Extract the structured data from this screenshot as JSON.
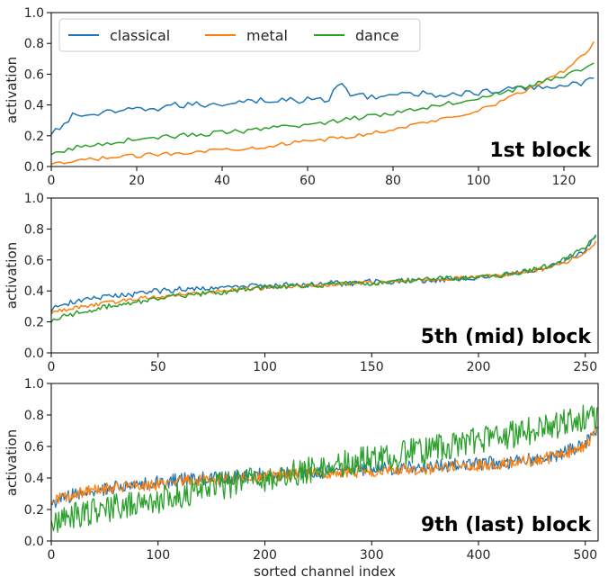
{
  "chart_data": [
    {
      "type": "line",
      "title": "1st block",
      "ylabel": "activation",
      "xlabel": "",
      "xlim": [
        0,
        128
      ],
      "ylim": [
        0,
        1
      ],
      "xticks": [
        0,
        20,
        40,
        60,
        80,
        100,
        120
      ],
      "yticks": [
        0.0,
        0.2,
        0.4,
        0.6,
        0.8,
        1.0
      ],
      "xtick_labels": [
        "0",
        "20",
        "40",
        "60",
        "80",
        "100",
        "120"
      ],
      "ytick_labels": [
        "0.0",
        "0.2",
        "0.4",
        "0.6",
        "0.8",
        "1.0"
      ],
      "legend": {
        "placement": "top-left",
        "columns": 3
      },
      "series": [
        {
          "name": "classical",
          "color": "#1f77b4",
          "x": [
            0,
            5,
            10,
            15,
            20,
            25,
            30,
            35,
            40,
            45,
            50,
            55,
            60,
            65,
            68,
            70,
            75,
            80,
            85,
            90,
            95,
            100,
            105,
            110,
            115,
            120,
            125,
            127
          ],
          "y": [
            0.2,
            0.33,
            0.34,
            0.35,
            0.37,
            0.38,
            0.4,
            0.4,
            0.41,
            0.43,
            0.43,
            0.43,
            0.43,
            0.44,
            0.55,
            0.46,
            0.46,
            0.46,
            0.47,
            0.47,
            0.47,
            0.48,
            0.49,
            0.51,
            0.52,
            0.53,
            0.55,
            0.57
          ]
        },
        {
          "name": "metal",
          "color": "#ff7f0e",
          "x": [
            0,
            5,
            10,
            15,
            20,
            25,
            30,
            35,
            40,
            45,
            50,
            55,
            60,
            65,
            70,
            75,
            80,
            85,
            90,
            95,
            100,
            105,
            110,
            115,
            120,
            125,
            127
          ],
          "y": [
            0.01,
            0.03,
            0.05,
            0.06,
            0.07,
            0.08,
            0.09,
            0.1,
            0.11,
            0.12,
            0.13,
            0.15,
            0.16,
            0.18,
            0.19,
            0.22,
            0.24,
            0.27,
            0.3,
            0.33,
            0.37,
            0.42,
            0.48,
            0.55,
            0.62,
            0.74,
            0.8
          ]
        },
        {
          "name": "dance",
          "color": "#2ca02c",
          "x": [
            0,
            5,
            10,
            15,
            20,
            25,
            30,
            35,
            40,
            45,
            50,
            55,
            60,
            65,
            70,
            75,
            80,
            85,
            90,
            95,
            100,
            105,
            110,
            115,
            120,
            125,
            127
          ],
          "y": [
            0.07,
            0.12,
            0.14,
            0.16,
            0.18,
            0.19,
            0.2,
            0.21,
            0.22,
            0.23,
            0.24,
            0.26,
            0.27,
            0.29,
            0.31,
            0.33,
            0.35,
            0.37,
            0.4,
            0.42,
            0.45,
            0.48,
            0.51,
            0.55,
            0.59,
            0.64,
            0.68
          ]
        }
      ]
    },
    {
      "type": "line",
      "title": "5th (mid) block",
      "ylabel": "activation",
      "xlabel": "",
      "xlim": [
        0,
        256
      ],
      "ylim": [
        0,
        1
      ],
      "xticks": [
        0,
        50,
        100,
        150,
        200,
        250
      ],
      "yticks": [
        0.0,
        0.2,
        0.4,
        0.6,
        0.8,
        1.0
      ],
      "xtick_labels": [
        "0",
        "50",
        "100",
        "150",
        "200",
        "250"
      ],
      "ytick_labels": [
        "0.0",
        "0.2",
        "0.4",
        "0.6",
        "0.8",
        "1.0"
      ],
      "series": [
        {
          "name": "classical",
          "color": "#1f77b4",
          "x": [
            0,
            10,
            20,
            30,
            40,
            50,
            60,
            70,
            80,
            90,
            100,
            110,
            120,
            130,
            140,
            150,
            160,
            170,
            180,
            190,
            200,
            210,
            220,
            230,
            240,
            250,
            255
          ],
          "y": [
            0.28,
            0.33,
            0.35,
            0.37,
            0.38,
            0.4,
            0.41,
            0.42,
            0.42,
            0.43,
            0.43,
            0.44,
            0.44,
            0.45,
            0.45,
            0.46,
            0.46,
            0.47,
            0.47,
            0.48,
            0.49,
            0.5,
            0.52,
            0.55,
            0.59,
            0.66,
            0.75
          ]
        },
        {
          "name": "metal",
          "color": "#ff7f0e",
          "x": [
            0,
            10,
            20,
            30,
            40,
            50,
            60,
            70,
            80,
            90,
            100,
            110,
            120,
            130,
            140,
            150,
            160,
            170,
            180,
            190,
            200,
            210,
            220,
            230,
            240,
            250,
            255
          ],
          "y": [
            0.26,
            0.29,
            0.31,
            0.33,
            0.35,
            0.36,
            0.38,
            0.39,
            0.4,
            0.41,
            0.42,
            0.43,
            0.43,
            0.44,
            0.45,
            0.45,
            0.46,
            0.47,
            0.47,
            0.48,
            0.49,
            0.5,
            0.52,
            0.54,
            0.58,
            0.65,
            0.72
          ]
        },
        {
          "name": "dance",
          "color": "#2ca02c",
          "x": [
            0,
            10,
            20,
            30,
            40,
            50,
            60,
            70,
            80,
            90,
            100,
            110,
            120,
            130,
            140,
            150,
            160,
            170,
            180,
            190,
            200,
            210,
            220,
            230,
            240,
            250,
            255
          ],
          "y": [
            0.21,
            0.25,
            0.28,
            0.31,
            0.33,
            0.35,
            0.37,
            0.38,
            0.39,
            0.41,
            0.42,
            0.43,
            0.43,
            0.44,
            0.45,
            0.45,
            0.46,
            0.47,
            0.48,
            0.48,
            0.49,
            0.5,
            0.52,
            0.55,
            0.6,
            0.68,
            0.76
          ]
        }
      ]
    },
    {
      "type": "line",
      "title": "9th (last) block",
      "ylabel": "activation",
      "xlabel": "sorted channel index",
      "xlim": [
        0,
        512
      ],
      "ylim": [
        0,
        1
      ],
      "xticks": [
        0,
        100,
        200,
        300,
        400,
        500
      ],
      "yticks": [
        0.0,
        0.2,
        0.4,
        0.6,
        0.8,
        1.0
      ],
      "xtick_labels": [
        "0",
        "100",
        "200",
        "300",
        "400",
        "500"
      ],
      "ytick_labels": [
        "0.0",
        "0.2",
        "0.4",
        "0.6",
        "0.8",
        "1.0"
      ],
      "series": [
        {
          "name": "classical",
          "color": "#1f77b4",
          "x": [
            0,
            25,
            50,
            75,
            100,
            125,
            150,
            175,
            200,
            225,
            250,
            275,
            300,
            325,
            350,
            375,
            400,
            425,
            450,
            475,
            500,
            511
          ],
          "y": [
            0.24,
            0.3,
            0.33,
            0.35,
            0.37,
            0.39,
            0.4,
            0.41,
            0.42,
            0.43,
            0.44,
            0.45,
            0.46,
            0.46,
            0.47,
            0.48,
            0.49,
            0.5,
            0.52,
            0.55,
            0.62,
            0.7
          ]
        },
        {
          "name": "metal",
          "color": "#ff7f0e",
          "x": [
            0,
            25,
            50,
            75,
            100,
            125,
            150,
            175,
            200,
            225,
            250,
            275,
            300,
            325,
            350,
            375,
            400,
            425,
            450,
            475,
            500,
            511
          ],
          "y": [
            0.25,
            0.3,
            0.33,
            0.35,
            0.36,
            0.38,
            0.39,
            0.4,
            0.41,
            0.42,
            0.43,
            0.44,
            0.44,
            0.45,
            0.46,
            0.47,
            0.48,
            0.49,
            0.51,
            0.54,
            0.6,
            0.72
          ]
        },
        {
          "name": "dance",
          "color": "#2ca02c",
          "x": [
            0,
            25,
            50,
            75,
            100,
            125,
            150,
            175,
            200,
            225,
            250,
            275,
            300,
            325,
            350,
            375,
            400,
            425,
            450,
            475,
            500,
            511
          ],
          "y": [
            0.13,
            0.17,
            0.2,
            0.23,
            0.26,
            0.3,
            0.34,
            0.37,
            0.4,
            0.43,
            0.46,
            0.49,
            0.52,
            0.55,
            0.58,
            0.61,
            0.64,
            0.67,
            0.7,
            0.74,
            0.78,
            0.8
          ]
        }
      ]
    }
  ]
}
